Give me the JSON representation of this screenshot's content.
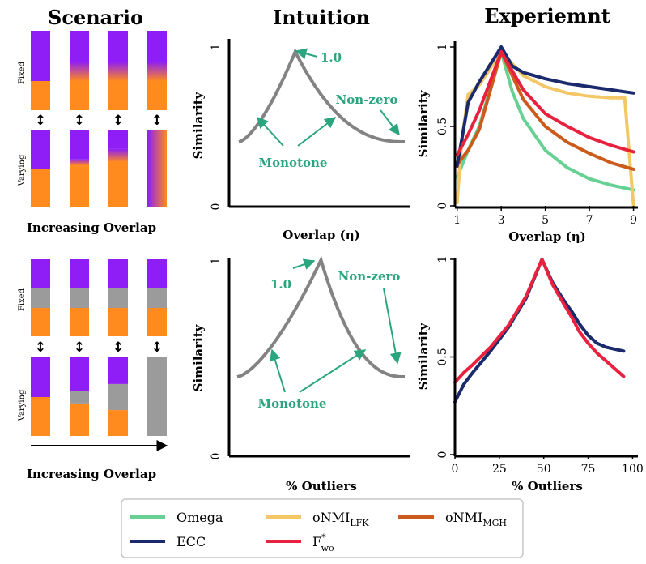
{
  "columns": {
    "scenario": "Scenario",
    "intuition": "Intuition",
    "experiment": "Experiemnt"
  },
  "scenario": {
    "fixed_label": "Fixed",
    "varying_label": "Varying",
    "updown_glyph": "↕",
    "top_caption": "Increasing Overlap",
    "bottom_caption": "Increasing Overlap",
    "top_overlap_fractions": [
      0,
      0.33,
      0.67,
      1
    ],
    "bottom_outlier_fractions": [
      0,
      0.33,
      0.67,
      1
    ]
  },
  "intuition": {
    "top": {
      "xlabel": "Overlap (η)",
      "ylabel": "Similarity",
      "y_ticks": [
        "0",
        "1"
      ],
      "peak_label": "1.0",
      "monotone_label": "Monotone",
      "nonzero_label": "Non-zero",
      "curve": {
        "start": 0.4,
        "peak_x": 0.34,
        "peak": 0.97,
        "end": 0.4
      }
    },
    "bottom": {
      "xlabel": "% Outliers",
      "ylabel": "Similarity",
      "y_ticks": [
        "0",
        "1"
      ],
      "peak_label": "1.0",
      "monotone_label": "Monotone",
      "nonzero_label": "Non-zero",
      "curve": {
        "start": 0.4,
        "peak_x": 0.5,
        "peak": 1.0,
        "end": 0.4
      }
    }
  },
  "chart_data": [
    {
      "type": "line",
      "title": "Experiemnt",
      "xlabel": "Overlap (η)",
      "ylabel": "Similarity",
      "xlim": [
        0.9,
        9.2
      ],
      "ylim": [
        0,
        1
      ],
      "x_ticks": [
        1,
        3,
        5,
        7,
        9
      ],
      "y_ticks": [
        0,
        0.5,
        1
      ],
      "x_tick_labels": [
        "1",
        "3",
        "5",
        "7",
        "9"
      ],
      "y_tick_labels": [
        "0",
        "0.5",
        "1"
      ],
      "series": [
        {
          "name": "Omega",
          "x": [
            1,
            1.5,
            2,
            3,
            3.5,
            4,
            5,
            6,
            7,
            8,
            9
          ],
          "y": [
            0.18,
            0.35,
            0.5,
            0.97,
            0.72,
            0.55,
            0.35,
            0.24,
            0.17,
            0.13,
            0.1
          ]
        },
        {
          "name": "oNMI_LFK",
          "x": [
            1,
            1.2,
            1.5,
            2,
            3,
            4,
            5,
            6,
            7,
            8,
            8.6,
            9
          ],
          "y": [
            0.02,
            0.4,
            0.7,
            0.76,
            0.97,
            0.82,
            0.75,
            0.71,
            0.69,
            0.68,
            0.68,
            0.0
          ]
        },
        {
          "name": "oNMI_MGH",
          "x": [
            1,
            1.5,
            2,
            3,
            4,
            5,
            6,
            7,
            8,
            9
          ],
          "y": [
            0.26,
            0.35,
            0.48,
            0.97,
            0.67,
            0.5,
            0.4,
            0.33,
            0.27,
            0.23
          ]
        },
        {
          "name": "ECC",
          "x": [
            1,
            1.5,
            2,
            3,
            3.5,
            4,
            5,
            6,
            7,
            8,
            9
          ],
          "y": [
            0.25,
            0.65,
            0.78,
            1.0,
            0.88,
            0.84,
            0.8,
            0.77,
            0.75,
            0.73,
            0.71
          ]
        },
        {
          "name": "F*_wo",
          "x": [
            1,
            1.5,
            2,
            3,
            4,
            5,
            6,
            7,
            8,
            9
          ],
          "y": [
            0.32,
            0.45,
            0.6,
            0.97,
            0.73,
            0.58,
            0.5,
            0.43,
            0.38,
            0.34
          ]
        }
      ]
    },
    {
      "type": "line",
      "xlabel": "% Outliers",
      "ylabel": "Similarity",
      "xlim": [
        0,
        103
      ],
      "ylim": [
        0,
        1
      ],
      "x_ticks": [
        0,
        25,
        50,
        75,
        100
      ],
      "y_ticks": [
        0,
        0.5,
        1
      ],
      "x_tick_labels": [
        "0",
        "25",
        "50",
        "75",
        "100"
      ],
      "y_tick_labels": [
        "0",
        "0.5",
        "1"
      ],
      "series": [
        {
          "name": "ECC",
          "x": [
            0,
            5,
            10,
            20,
            30,
            40,
            49,
            55,
            62,
            66,
            70,
            75,
            80,
            85,
            90,
            95
          ],
          "y": [
            0.27,
            0.36,
            0.42,
            0.53,
            0.65,
            0.8,
            1.0,
            0.88,
            0.78,
            0.73,
            0.67,
            0.61,
            0.57,
            0.55,
            0.54,
            0.53
          ]
        },
        {
          "name": "F*_wo",
          "x": [
            0,
            5,
            10,
            20,
            30,
            40,
            49,
            55,
            62,
            66,
            70,
            75,
            80,
            85,
            90,
            95
          ],
          "y": [
            0.37,
            0.42,
            0.46,
            0.55,
            0.66,
            0.81,
            1.0,
            0.87,
            0.76,
            0.7,
            0.63,
            0.57,
            0.52,
            0.48,
            0.44,
            0.4
          ]
        }
      ]
    }
  ],
  "legend": {
    "items": [
      {
        "name": "Omega",
        "base": "Omega",
        "sub": "",
        "sup": "",
        "color": "#66d193"
      },
      {
        "name": "oNMI_LFK",
        "base": "oNMI",
        "sub": "LFK",
        "sup": "",
        "color": "#f3c766"
      },
      {
        "name": "oNMI_MGH",
        "base": "oNMI",
        "sub": "MGH",
        "sup": "",
        "color": "#cc5a1a"
      },
      {
        "name": "ECC",
        "base": "ECC",
        "sub": "",
        "sup": "",
        "color": "#1a2a6c"
      },
      {
        "name": "F*_wo",
        "base": "F",
        "sub": "wo",
        "sup": "*",
        "color": "#e8213f"
      }
    ]
  },
  "colors": {
    "purple": "#8e1ef5",
    "orange": "#ff8a1e",
    "gray": "#9b9b9b",
    "teal": "#2aa57e",
    "intuition_curve": "#838383"
  }
}
